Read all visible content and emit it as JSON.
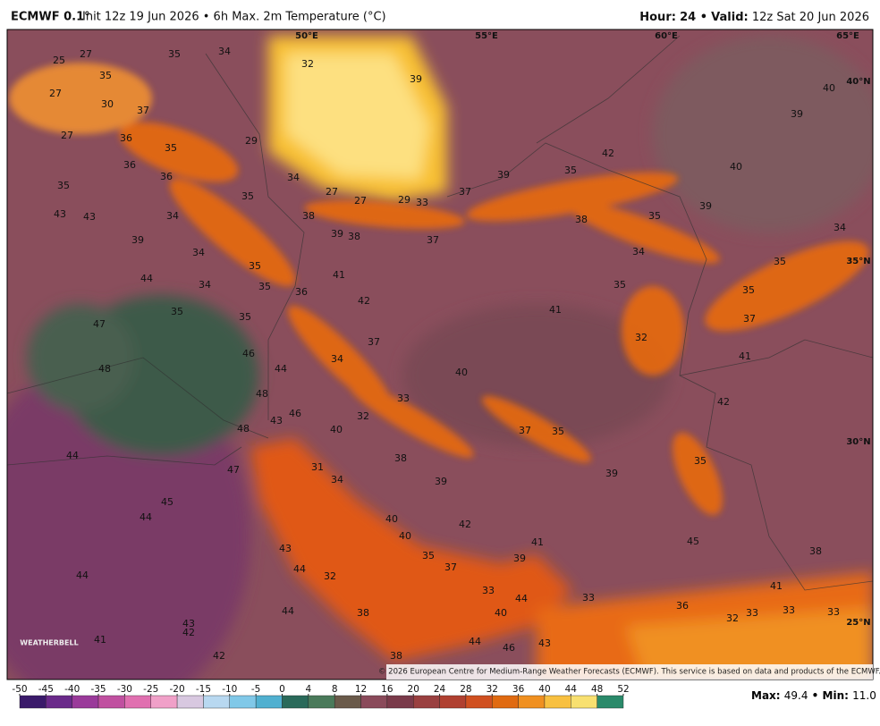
{
  "header": {
    "model": "ECMWF 0.1°",
    "info": "Init 12z 19 Jun 2026 • 6h Max. 2m Temperature (°C)",
    "hour_label": "Hour:",
    "hour": "24 •",
    "valid_label": "Valid:",
    "valid": "12z Sat 20 Jun 2026"
  },
  "map": {
    "grid_labels": [
      "50°E",
      "55°E",
      "60°E",
      "65°E",
      "40°N",
      "35°N",
      "30°N",
      "25°N"
    ],
    "labels": [
      25,
      27,
      35,
      35,
      34,
      32,
      39,
      40,
      39,
      27,
      30,
      37,
      27,
      36,
      35,
      29,
      36,
      36,
      34,
      27,
      27,
      29,
      33,
      37,
      39,
      35,
      42,
      40,
      35,
      35,
      38,
      38,
      35,
      39,
      43,
      43,
      34,
      39,
      38,
      37,
      34,
      39,
      34,
      35,
      34,
      35,
      44,
      34,
      35,
      36,
      41,
      35,
      35,
      42,
      41,
      35,
      35,
      37,
      47,
      37,
      32,
      46,
      34,
      41,
      48,
      44,
      40,
      48,
      33,
      42,
      43,
      46,
      32,
      48,
      40,
      37,
      35,
      44,
      38,
      39,
      35,
      47,
      31,
      34,
      39,
      45,
      44,
      40,
      42,
      40,
      45,
      41,
      38,
      43,
      35,
      37,
      39,
      44,
      32,
      44,
      33,
      44,
      33,
      41,
      36,
      44,
      38,
      40,
      32,
      33,
      33,
      33,
      43,
      42,
      41,
      44,
      46,
      43,
      38,
      42
    ],
    "logo": "WEATHERBELL",
    "credit": "© 2026 European Centre for Medium-Range Weather Forecasts (ECMWF). This service is based on data and products of the ECMWF."
  },
  "colorbar": {
    "ticks": [
      -50,
      -45,
      -40,
      -35,
      -30,
      -25,
      -20,
      -15,
      -10,
      -5,
      0,
      4,
      8,
      12,
      16,
      20,
      24,
      28,
      32,
      36,
      40,
      44,
      48,
      52
    ],
    "colors": [
      "#3a1a6a",
      "#6a2a8a",
      "#9a3a9a",
      "#c050a0",
      "#e070b0",
      "#f0a0c8",
      "#d8c8e0",
      "#b8d8f0",
      "#80c8e8",
      "#50b0d0",
      "#2a6a5a",
      "#4a7a5a",
      "#6a5a4a",
      "#8a4a5a",
      "#7a3a4a",
      "#9a4040",
      "#b04030",
      "#d05020",
      "#e06a10",
      "#f09020",
      "#f8c040",
      "#f8e070",
      "#2a8a6a"
    ]
  },
  "footer": {
    "max_label": "Max:",
    "max": "49.4",
    "min_label": "• Min:",
    "min": "11.0"
  }
}
